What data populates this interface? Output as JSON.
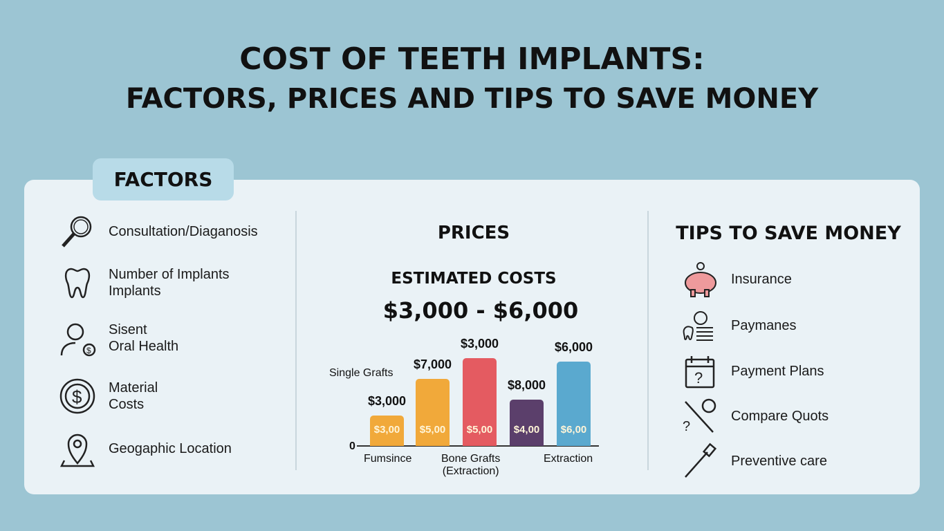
{
  "title": {
    "line1": "COST OF TEETH IMPLANTS:",
    "line2": "FACTORS, PRICES AND TIPS TO SAVE MONEY"
  },
  "factors": {
    "tab": "FACTORS",
    "items": [
      {
        "label": "Consultation/Diaganosis",
        "icon": "magnifier-icon"
      },
      {
        "label": "Number of Implants\nImplants",
        "icon": "tooth-icon"
      },
      {
        "label": "Sisent\nOral Health",
        "icon": "person-dollar-icon"
      },
      {
        "label": "Material\nCosts",
        "icon": "dollar-coin-icon"
      },
      {
        "label": "Geogaphic Location",
        "icon": "location-pin-icon"
      }
    ]
  },
  "prices": {
    "heading": "PRICES",
    "subheading": "ESTIMATED COSTS",
    "range": "$3,000 - $6,000"
  },
  "chart_data": {
    "type": "bar",
    "annotation": "Single Grafts",
    "zero_label": "0",
    "x_labels": [
      "Fumsince",
      "Bone Grafts\n(Extraction)",
      "Extraction"
    ],
    "bars": [
      {
        "top_label": "$3,000",
        "inner_label": "$3,00",
        "relative_height": 0.35,
        "color": "#f1a93a"
      },
      {
        "top_label": "$7,000",
        "inner_label": "$5,00",
        "relative_height": 0.76,
        "color": "#f1a93a"
      },
      {
        "top_label": "$3,000",
        "inner_label": "$5,00",
        "relative_height": 1.0,
        "color": "#e45b61"
      },
      {
        "top_label": "$8,000",
        "inner_label": "$4,00",
        "relative_height": 0.53,
        "color": "#5b3f6b"
      },
      {
        "top_label": "$6,000",
        "inner_label": "$6,00",
        "relative_height": 0.96,
        "color": "#5aa9cf"
      }
    ]
  },
  "tips": {
    "heading": "TIPS TO SAVE MONEY",
    "items": [
      {
        "label": "Insurance",
        "icon": "piggy-bank-icon"
      },
      {
        "label": "Paymanes",
        "icon": "tooth-coins-icon"
      },
      {
        "label": "Payment Plans",
        "icon": "calendar-question-icon"
      },
      {
        "label": "Compare Quots",
        "icon": "compare-tools-icon"
      },
      {
        "label": "Preventive care",
        "icon": "toothbrush-icon"
      }
    ]
  }
}
